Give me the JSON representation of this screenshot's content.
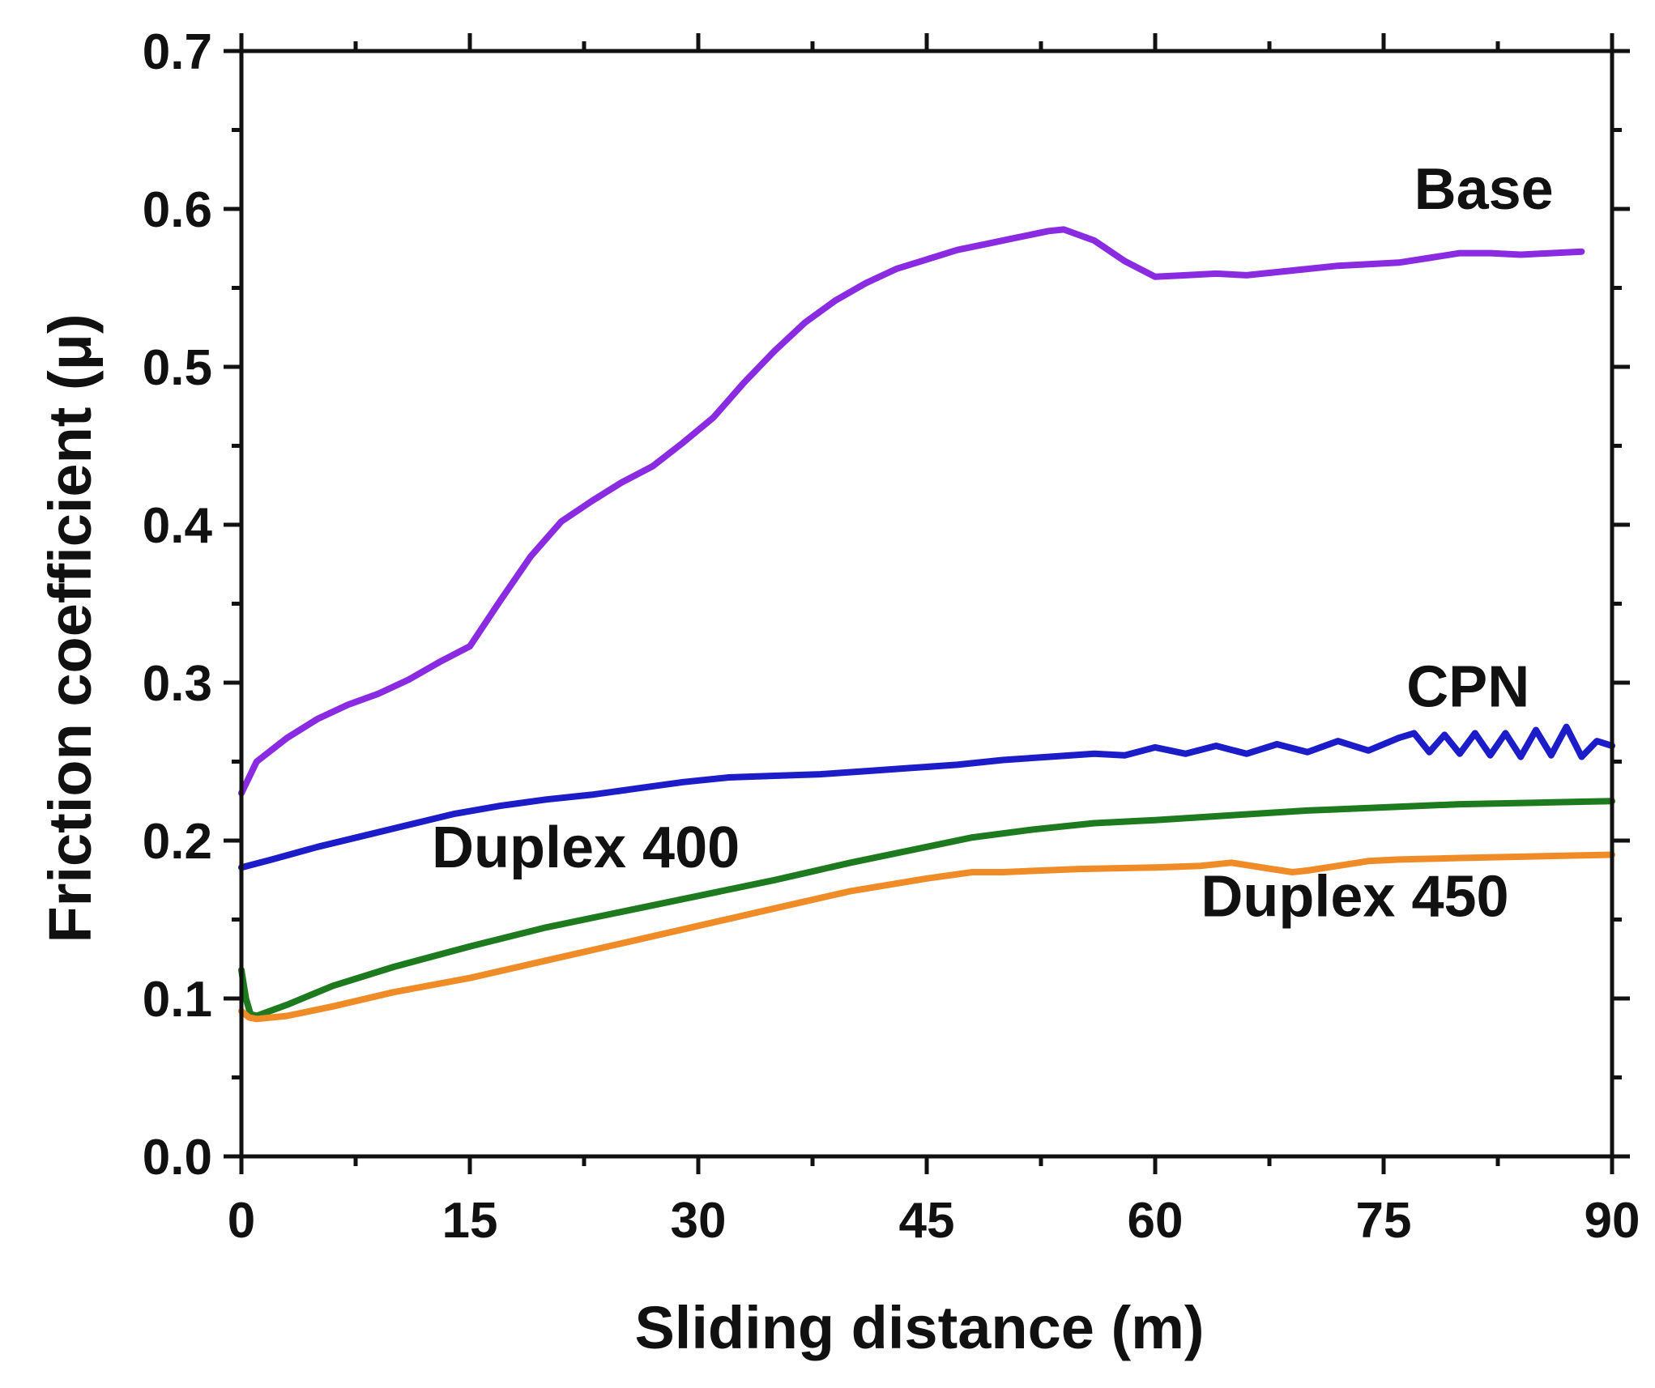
{
  "chart_data": {
    "type": "line",
    "title": "",
    "xlabel": "Sliding distance (m)",
    "ylabel": "Friction coefficient (μ)",
    "xlim": [
      0,
      90
    ],
    "ylim": [
      0.0,
      0.7
    ],
    "x_ticks": [
      0,
      15,
      30,
      45,
      60,
      75,
      90
    ],
    "x_tick_labels": [
      "0",
      "15",
      "30",
      "45",
      "60",
      "75",
      "90"
    ],
    "y_ticks": [
      0.0,
      0.1,
      0.2,
      0.3,
      0.4,
      0.5,
      0.6,
      0.7
    ],
    "y_tick_labels": [
      "0.0",
      "0.1",
      "0.2",
      "0.3",
      "0.4",
      "0.5",
      "0.6",
      "0.7"
    ],
    "grid": false,
    "series": [
      {
        "name": "Base",
        "label": "Base",
        "color": "#8a2be2",
        "x": [
          0,
          1,
          3,
          5,
          7,
          9,
          11,
          13,
          15,
          17,
          19,
          21,
          23,
          25,
          27,
          29,
          31,
          33,
          35,
          37,
          39,
          41,
          43,
          45,
          47,
          49,
          51,
          53,
          54,
          56,
          58,
          60,
          62,
          64,
          66,
          68,
          70,
          72,
          74,
          76,
          78,
          80,
          82,
          84,
          86,
          88
        ],
        "y": [
          0.23,
          0.25,
          0.265,
          0.277,
          0.286,
          0.293,
          0.302,
          0.313,
          0.323,
          0.352,
          0.38,
          0.402,
          0.415,
          0.427,
          0.437,
          0.452,
          0.468,
          0.49,
          0.51,
          0.528,
          0.542,
          0.553,
          0.562,
          0.568,
          0.574,
          0.578,
          0.582,
          0.586,
          0.587,
          0.58,
          0.567,
          0.557,
          0.558,
          0.559,
          0.558,
          0.56,
          0.562,
          0.564,
          0.565,
          0.566,
          0.569,
          0.572,
          0.572,
          0.571,
          0.572,
          0.573
        ]
      },
      {
        "name": "CPN",
        "label": "CPN",
        "color": "#1c1cc8",
        "x": [
          0,
          2,
          5,
          8,
          11,
          14,
          17,
          20,
          23,
          26,
          29,
          32,
          35,
          38,
          41,
          44,
          47,
          50,
          53,
          56,
          58,
          60,
          62,
          64,
          66,
          68,
          70,
          72,
          74,
          76,
          77,
          78,
          79,
          80,
          81,
          82,
          83,
          84,
          85,
          86,
          87,
          88,
          89,
          90
        ],
        "y": [
          0.183,
          0.188,
          0.196,
          0.203,
          0.21,
          0.217,
          0.222,
          0.226,
          0.229,
          0.233,
          0.237,
          0.24,
          0.241,
          0.242,
          0.244,
          0.246,
          0.248,
          0.251,
          0.253,
          0.255,
          0.254,
          0.259,
          0.255,
          0.26,
          0.255,
          0.261,
          0.256,
          0.263,
          0.257,
          0.265,
          0.268,
          0.256,
          0.267,
          0.255,
          0.268,
          0.254,
          0.268,
          0.253,
          0.27,
          0.254,
          0.272,
          0.253,
          0.263,
          0.26
        ]
      },
      {
        "name": "Duplex 400",
        "label": "Duplex 400",
        "color": "#1e7a1e",
        "x": [
          0,
          0.3,
          0.6,
          1,
          3,
          6,
          10,
          15,
          20,
          25,
          30,
          35,
          40,
          45,
          48,
          52,
          56,
          60,
          65,
          70,
          75,
          80,
          85,
          90
        ],
        "y": [
          0.118,
          0.1,
          0.09,
          0.089,
          0.096,
          0.108,
          0.12,
          0.133,
          0.145,
          0.155,
          0.165,
          0.175,
          0.186,
          0.196,
          0.202,
          0.207,
          0.211,
          0.213,
          0.216,
          0.219,
          0.221,
          0.223,
          0.224,
          0.225
        ]
      },
      {
        "name": "Duplex 450",
        "label": "Duplex 450",
        "color": "#f08c28",
        "x": [
          0,
          0.5,
          1,
          3,
          6,
          10,
          15,
          20,
          25,
          30,
          35,
          40,
          45,
          48,
          50,
          55,
          60,
          63,
          65,
          67,
          69,
          70,
          72,
          74,
          76,
          80,
          85,
          90
        ],
        "y": [
          0.092,
          0.088,
          0.087,
          0.089,
          0.095,
          0.104,
          0.113,
          0.124,
          0.135,
          0.146,
          0.157,
          0.168,
          0.176,
          0.18,
          0.18,
          0.182,
          0.183,
          0.184,
          0.186,
          0.183,
          0.18,
          0.181,
          0.184,
          0.187,
          0.188,
          0.189,
          0.19,
          0.191
        ]
      }
    ],
    "annotations": [
      {
        "text": "Base",
        "series": "Base",
        "at_x": 77,
        "at_y": 0.6
      },
      {
        "text": "CPN",
        "series": "CPN",
        "at_x": 76.5,
        "at_y": 0.285
      },
      {
        "text": "Duplex 400",
        "series": "Duplex 400",
        "at_x": 12.5,
        "at_y": 0.183
      },
      {
        "text": "Duplex 450",
        "series": "Duplex 450",
        "at_x": 63,
        "at_y": 0.152
      }
    ]
  }
}
